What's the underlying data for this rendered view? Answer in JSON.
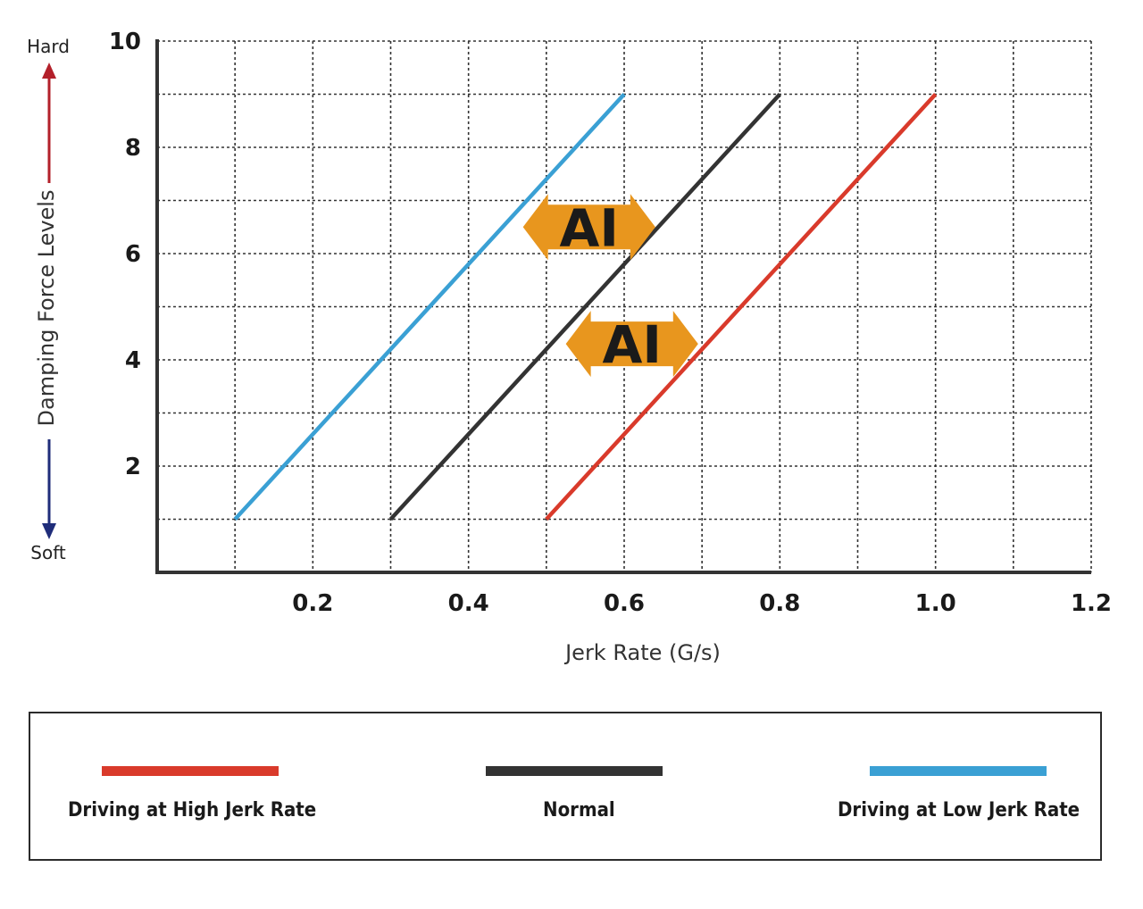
{
  "chart_data": {
    "type": "line",
    "xlabel": "Jerk Rate (G/s)",
    "ylabel": "Damping Force Levels",
    "xlim": [
      0,
      1.2
    ],
    "ylim": [
      0,
      10
    ],
    "x_ticks": [
      "0.2",
      "0.4",
      "0.6",
      "0.8",
      "1.0",
      "1.2"
    ],
    "y_ticks": [
      "2",
      "4",
      "6",
      "8",
      "10"
    ],
    "grid": true,
    "y_direction_labels": {
      "top": "Hard",
      "bottom": "Soft"
    },
    "series": [
      {
        "name": "Driving at High Jerk Rate",
        "color": "#d93a2b",
        "x": [
          0.5,
          1.0
        ],
        "y": [
          1,
          9
        ]
      },
      {
        "name": "Normal",
        "color": "#333333",
        "x": [
          0.3,
          0.8
        ],
        "y": [
          1,
          9
        ]
      },
      {
        "name": "Driving at Low Jerk Rate",
        "color": "#3aa0d4",
        "x": [
          0.1,
          0.6
        ],
        "y": [
          1,
          9
        ]
      }
    ],
    "annotations": [
      {
        "text": "AI",
        "shape": "double-arrow",
        "color": "#e8961e",
        "x": [
          0.47,
          0.64
        ],
        "y": 6.5
      },
      {
        "text": "AI",
        "shape": "double-arrow",
        "color": "#e8961e",
        "x": [
          0.525,
          0.695
        ],
        "y": 4.3
      }
    ],
    "legend_position": "bottom"
  },
  "colors": {
    "hard_arrow": "#b3202a",
    "soft_arrow": "#1f2d7a",
    "axis": "#333333",
    "grid": "#333333"
  }
}
